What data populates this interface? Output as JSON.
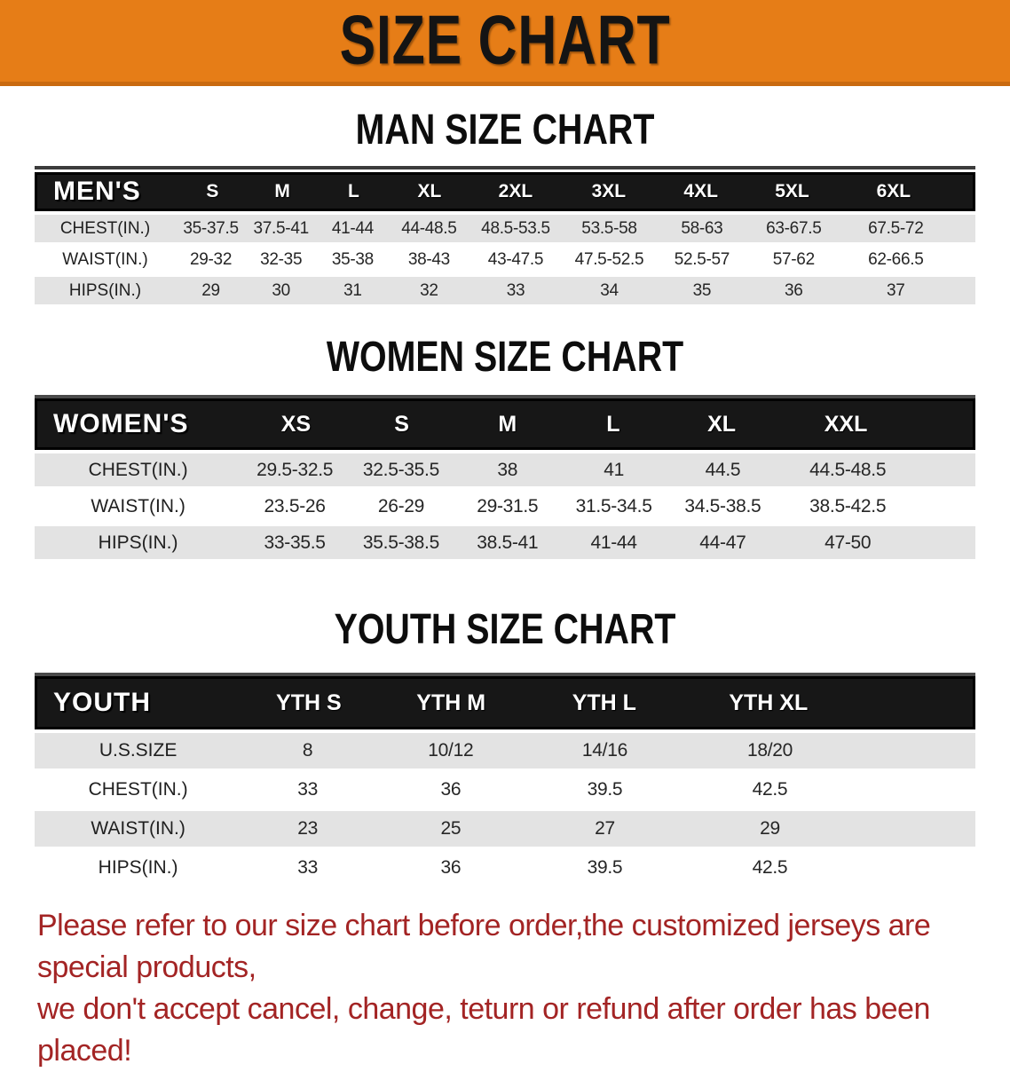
{
  "banner": {
    "title": "SIZE CHART",
    "bg_color": "#e67d17",
    "text_color": "#141414"
  },
  "sections": [
    {
      "heading": "MAN SIZE CHART",
      "header_label": "MEN'S",
      "columns": [
        "S",
        "M",
        "L",
        "XL",
        "2XL",
        "3XL",
        "4XL",
        "5XL",
        "6XL"
      ],
      "rows": [
        {
          "label": "CHEST(IN.)",
          "values": [
            "35-37.5",
            "37.5-41",
            "41-44",
            "44-48.5",
            "48.5-53.5",
            "53.5-58",
            "58-63",
            "63-67.5",
            "67.5-72"
          ]
        },
        {
          "label": "WAIST(IN.)",
          "values": [
            "29-32",
            "32-35",
            "35-38",
            "38-43",
            "43-47.5",
            "47.5-52.5",
            "52.5-57",
            "57-62",
            "62-66.5"
          ]
        },
        {
          "label": "HIPS(IN.)",
          "values": [
            "29",
            "30",
            "31",
            "32",
            "33",
            "34",
            "35",
            "36",
            "37"
          ]
        }
      ]
    },
    {
      "heading": "WOMEN SIZE CHART",
      "header_label": "WOMEN'S",
      "columns": [
        "XS",
        "S",
        "M",
        "L",
        "XL",
        "XXL"
      ],
      "rows": [
        {
          "label": "CHEST(IN.)",
          "values": [
            "29.5-32.5",
            "32.5-35.5",
            "38",
            "41",
            "44.5",
            "44.5-48.5"
          ]
        },
        {
          "label": "WAIST(IN.)",
          "values": [
            "23.5-26",
            "26-29",
            "29-31.5",
            "31.5-34.5",
            "34.5-38.5",
            "38.5-42.5"
          ]
        },
        {
          "label": "HIPS(IN.)",
          "values": [
            "33-35.5",
            "35.5-38.5",
            "38.5-41",
            "41-44",
            "44-47",
            "47-50"
          ]
        }
      ]
    },
    {
      "heading": "YOUTH SIZE CHART",
      "header_label": "YOUTH",
      "columns": [
        "YTH S",
        "YTH M",
        "YTH L",
        "YTH XL"
      ],
      "rows": [
        {
          "label": "U.S.SIZE",
          "values": [
            "8",
            "10/12",
            "14/16",
            "18/20"
          ]
        },
        {
          "label": "CHEST(IN.)",
          "values": [
            "33",
            "36",
            "39.5",
            "42.5"
          ]
        },
        {
          "label": "WAIST(IN.)",
          "values": [
            "23",
            "25",
            "27",
            "29"
          ]
        },
        {
          "label": "HIPS(IN.)",
          "values": [
            "33",
            "36",
            "39.5",
            "42.5"
          ]
        }
      ]
    }
  ],
  "footer": {
    "line1": "Please refer to our size chart before order,the customized jerseys are special products,",
    "line2": "we don't accept cancel, change, teturn or refund after order has been placed!",
    "text_color": "#a32424"
  },
  "colors": {
    "banner_orange": "#e67d17",
    "table_header_black": "#171717",
    "row_band_gray": "#e3e3e3",
    "row_band_white": "#ffffff",
    "footer_red": "#a32424"
  }
}
